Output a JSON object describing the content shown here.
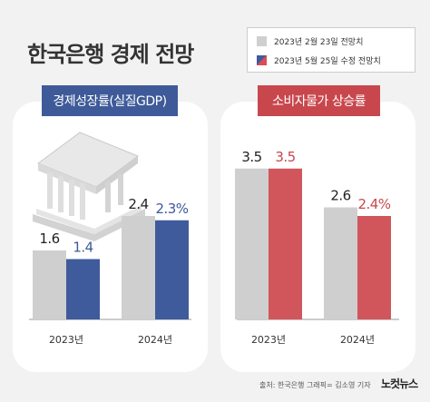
{
  "title": "한국은행 경제 전망",
  "legend": {
    "first": "2023년 2월 23일 전망치",
    "second": "2023년 5월 25일 수정 전망치"
  },
  "colors": {
    "gray": "#cfcfcf",
    "blue": "#3f5b9c",
    "red": "#d0565b",
    "value_blue": "#3e5a99",
    "value_red": "#c8474d"
  },
  "chart_data": [
    {
      "type": "bar",
      "title": "경제성장률(실질GDP)",
      "categories": [
        "2023년",
        "2024년"
      ],
      "series": [
        {
          "name": "2023년 2월 23일 전망치",
          "values": [
            1.6,
            2.4
          ],
          "labels": [
            "1.6",
            "2.4"
          ]
        },
        {
          "name": "2023년 5월 25일 수정 전망치",
          "values": [
            1.4,
            2.3
          ],
          "labels": [
            "1.4",
            "2.3%"
          ]
        }
      ]
    },
    {
      "type": "bar",
      "title": "소비자물가 상승률",
      "categories": [
        "2023년",
        "2024년"
      ],
      "series": [
        {
          "name": "2023년 2월 23일 전망치",
          "values": [
            3.5,
            2.6
          ],
          "labels": [
            "3.5",
            "2.6"
          ]
        },
        {
          "name": "2023년 5월 25일 수정 전망치",
          "values": [
            3.5,
            2.4
          ],
          "labels": [
            "3.5",
            "2.4%"
          ]
        }
      ]
    }
  ],
  "footer": {
    "source": "출처: 한국은행   그래픽= 김소영 기자",
    "logo": "노컷뉴스"
  }
}
